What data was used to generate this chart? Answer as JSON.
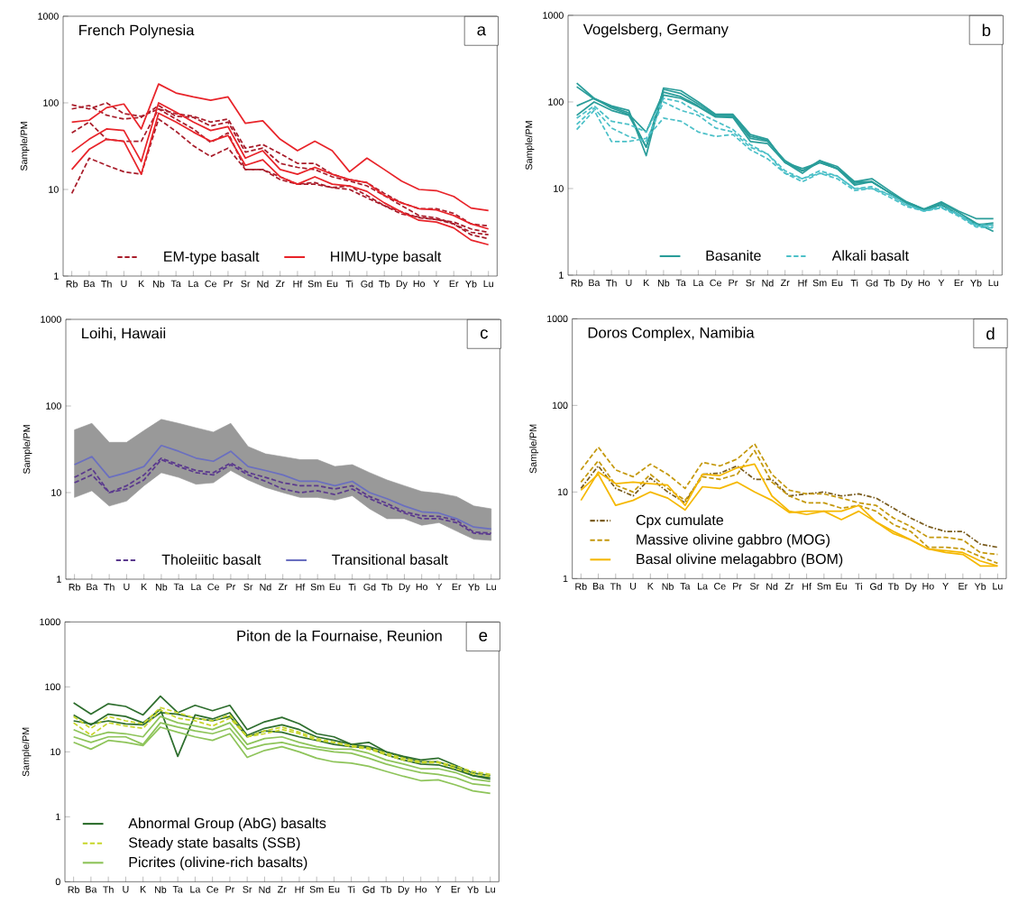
{
  "chart_data": [
    {
      "type": "line",
      "title": "French Polynesia",
      "annotations": [
        "a"
      ],
      "ylabel": "Sample/PM",
      "categories": [
        "Rb",
        "Ba",
        "Th",
        "U",
        "K",
        "Nb",
        "Ta",
        "La",
        "Ce",
        "Pr",
        "Sr",
        "Nd",
        "Zr",
        "Hf",
        "Sm",
        "Eu",
        "Ti",
        "Gd",
        "Tb",
        "Dy",
        "Ho",
        "Y",
        "Er",
        "Yb",
        "Lu"
      ],
      "log": "y",
      "ylim": [
        1,
        1000
      ],
      "yticks": [
        1,
        10,
        100,
        1000
      ],
      "legend": "bottom",
      "series": [
        {
          "name": "EM-type basalt",
          "color": "#a81c2a",
          "line_style": "dashed",
          "values": [
            95,
            85,
            100,
            75,
            70,
            85,
            75,
            70,
            60,
            65,
            30,
            33,
            26,
            20,
            20,
            15,
            13,
            12,
            9,
            7,
            6,
            6,
            5.3,
            4,
            3.8
          ]
        },
        {
          "color": "#a81c2a",
          "line_style": "dashed",
          "values": [
            85,
            93,
            72,
            65,
            68,
            93,
            70,
            68,
            54,
            60,
            27,
            30,
            20,
            18,
            17,
            14,
            12.5,
            11,
            8.5,
            6.5,
            5,
            4.7,
            4,
            3,
            2.7
          ]
        },
        {
          "color": "#a81c2a",
          "line_style": "dashed",
          "values": [
            45,
            60,
            38,
            36,
            36,
            85,
            65,
            50,
            35,
            45,
            17,
            17,
            14,
            11.5,
            12,
            10.5,
            10,
            8,
            6.5,
            5.2,
            4.8,
            4.5,
            4,
            3.2,
            3
          ]
        },
        {
          "color": "#a81c2a",
          "line_style": "dashed",
          "values": [
            9,
            23,
            19,
            16,
            15,
            65,
            47,
            32,
            24,
            30,
            17,
            17,
            13,
            11.5,
            11.5,
            10.5,
            11,
            8.5,
            6.5,
            5.5,
            4.7,
            4.5,
            4.2,
            3.5,
            3.2
          ]
        },
        {
          "name": "HIMU-type basalt",
          "color": "#e8242a",
          "line_style": "solid",
          "values": [
            60,
            63,
            88,
            97,
            50,
            165,
            130,
            117,
            107,
            117,
            58,
            62,
            38,
            28,
            36,
            28,
            16,
            23,
            17,
            12.5,
            10,
            9.7,
            8.3,
            6.1,
            5.7
          ]
        },
        {
          "color": "#e8242a",
          "line_style": "solid",
          "values": [
            27,
            38,
            50,
            48,
            21,
            100,
            78,
            60,
            48,
            53,
            23,
            28,
            17,
            15,
            18,
            15,
            13,
            12,
            8.5,
            7,
            6,
            5.8,
            5,
            4,
            3.5
          ]
        },
        {
          "color": "#e8242a",
          "line_style": "solid",
          "values": [
            17,
            29,
            38,
            36,
            15,
            76,
            60,
            46,
            36,
            42,
            19,
            22,
            14,
            11.5,
            14,
            11.5,
            11,
            9.5,
            7,
            5.5,
            4.4,
            4.2,
            3.6,
            2.6,
            2.3
          ]
        }
      ]
    },
    {
      "type": "line",
      "title": "Vogelsberg, Germany",
      "annotations": [
        "b"
      ],
      "ylabel": "Sample/PM",
      "categories": [
        "Rb",
        "Ba",
        "Th",
        "U",
        "K",
        "Nb",
        "Ta",
        "La",
        "Ce",
        "Pr",
        "Sr",
        "Nd",
        "Zr",
        "Hf",
        "Sm",
        "Eu",
        "Ti",
        "Gd",
        "Tb",
        "Dy",
        "Ho",
        "Y",
        "Er",
        "Yb",
        "Lu"
      ],
      "log": "y",
      "ylim": [
        1,
        1000
      ],
      "yticks": [
        1,
        10,
        100,
        1000
      ],
      "legend": "bottom",
      "series": [
        {
          "name": "Basanite",
          "color": "#2a9d9a",
          "line_style": "solid",
          "values": [
            165,
            110,
            90,
            80,
            24,
            145,
            135,
            100,
            72,
            72,
            42,
            37,
            20,
            15,
            21,
            18,
            12,
            13,
            9.5,
            7,
            5.8,
            7,
            5.5,
            4.5,
            4.5
          ]
        },
        {
          "color": "#2a9d9a",
          "line_style": "solid",
          "values": [
            150,
            108,
            88,
            75,
            30,
            140,
            125,
            95,
            70,
            70,
            40,
            36,
            20,
            16,
            21,
            17,
            12,
            12,
            9,
            7,
            5.8,
            6.8,
            5.3,
            4,
            3.2
          ]
        },
        {
          "color": "#2a9d9a",
          "line_style": "solid",
          "values": [
            90,
            110,
            85,
            72,
            45,
            130,
            115,
            90,
            68,
            68,
            38,
            35,
            21,
            16,
            20,
            17,
            11.5,
            12,
            9,
            6.8,
            5.6,
            6.5,
            5,
            3.8,
            4
          ]
        },
        {
          "color": "#2a9d9a",
          "line_style": "solid",
          "values": [
            70,
            100,
            80,
            70,
            30,
            120,
            110,
            88,
            67,
            66,
            35,
            33,
            20,
            17,
            20,
            17,
            11,
            12,
            9,
            6.8,
            5.7,
            6.5,
            5,
            3.9,
            3.8
          ]
        },
        {
          "name": "Alkali basalt",
          "color": "#4cc0c8",
          "line_style": "dashed",
          "values": [
            65,
            90,
            60,
            55,
            45,
            110,
            100,
            75,
            60,
            48,
            32,
            25,
            16,
            13,
            16,
            14,
            10,
            10.5,
            8.5,
            6.5,
            5.5,
            6,
            5,
            3.8,
            3.8
          ]
        },
        {
          "color": "#4cc0c8",
          "line_style": "dashed",
          "values": [
            55,
            85,
            50,
            40,
            35,
            100,
            80,
            70,
            50,
            45,
            30,
            25,
            15,
            13,
            15,
            14,
            10,
            10,
            8.5,
            6.5,
            5.5,
            6.2,
            5,
            3.7,
            3.6
          ]
        },
        {
          "color": "#4cc0c8",
          "line_style": "dashed",
          "values": [
            48,
            80,
            35,
            35,
            38,
            65,
            60,
            45,
            40,
            42,
            28,
            22,
            15,
            12,
            15,
            13,
            9.5,
            10,
            8,
            6.2,
            5.5,
            6,
            4.8,
            3.6,
            3.5
          ]
        }
      ]
    },
    {
      "type": "line",
      "title": "Loihi, Hawaii",
      "annotations": [
        "c"
      ],
      "ylabel": "Sample/PM",
      "categories": [
        "Rb",
        "Ba",
        "Th",
        "U",
        "K",
        "Nb",
        "Ta",
        "La",
        "Ce",
        "Pr",
        "Sr",
        "Nd",
        "Zr",
        "Hf",
        "Sm",
        "Eu",
        "Ti",
        "Gd",
        "Tb",
        "Dy",
        "Ho",
        "Y",
        "Er",
        "Yb",
        "Lu"
      ],
      "log": "y",
      "ylim": [
        1,
        1000
      ],
      "yticks": [
        1,
        10,
        100,
        1000
      ],
      "legend": "bottom",
      "series": [
        {
          "name": "Tholeiitic basalt",
          "color": "#5b3a8e",
          "line_style": "dashed",
          "values": [
            15,
            19,
            10,
            12,
            16,
            25,
            21,
            18,
            17,
            22,
            17,
            15,
            13,
            12,
            12,
            11,
            12,
            9,
            7.5,
            6,
            5.4,
            5.3,
            4.8,
            3.5,
            3.4
          ]
        },
        {
          "color": "#5b3a8e",
          "line_style": "dashed",
          "values": [
            13,
            16,
            10,
            11,
            14,
            24,
            20,
            17,
            16,
            21,
            16,
            13.5,
            11,
            10,
            10.5,
            9.5,
            11,
            8.5,
            7,
            5.8,
            5,
            5,
            4.5,
            3.4,
            3.3
          ]
        },
        {
          "name": "Transitional basalt",
          "color": "#6a6fc0",
          "line_style": "solid",
          "values": [
            21,
            26,
            15,
            17,
            20,
            35,
            30,
            25,
            23,
            30,
            20,
            18,
            16,
            13.5,
            13.5,
            12,
            13.5,
            10,
            8.5,
            7,
            6,
            5.8,
            5,
            4,
            3.8
          ],
          "upper": [
            53,
            63,
            38,
            38,
            52,
            70,
            63,
            56,
            50,
            63,
            34,
            28,
            26,
            24,
            24,
            20,
            21,
            17,
            14,
            12,
            10.3,
            9.8,
            9,
            7,
            6.5
          ],
          "lower": [
            8.8,
            10.5,
            7,
            8,
            12,
            17,
            15,
            12.5,
            13,
            18,
            14,
            11.5,
            10,
            8.8,
            8.8,
            8.2,
            9.2,
            6.5,
            5,
            5,
            4.2,
            4.5,
            3.6,
            2.9,
            2.8
          ]
        }
      ]
    },
    {
      "type": "line",
      "title": "Doros Complex, Namibia",
      "annotations": [
        "d"
      ],
      "ylabel": "Sample/PM",
      "categories": [
        "Rb",
        "Ba",
        "Th",
        "U",
        "K",
        "Nb",
        "Ta",
        "La",
        "Ce",
        "Pr",
        "Sr",
        "Nd",
        "Zr",
        "Hf",
        "Sm",
        "Eu",
        "Ti",
        "Gd",
        "Tb",
        "Dy",
        "Ho",
        "Y",
        "Er",
        "Yb",
        "Lu"
      ],
      "log": "y",
      "ylim": [
        1,
        1000
      ],
      "yticks": [
        1,
        10,
        100,
        1000
      ],
      "legend": "bottom left",
      "series": [
        {
          "name": "Cpx cumulate",
          "color": "#7a5c1e",
          "line_style": "dashdot",
          "values": [
            11,
            20,
            11,
            9,
            14.5,
            10,
            7.5,
            16,
            16.5,
            20,
            14,
            14,
            9,
            9.5,
            10,
            9,
            9.5,
            8.5,
            6.5,
            5,
            4,
            3.5,
            3.5,
            2.5,
            2.3
          ]
        },
        {
          "name": "Massive olivine gabbro (MOG)",
          "color": "#c4980c",
          "line_style": "dashed",
          "values": [
            18,
            33,
            18,
            15,
            21,
            16,
            11,
            22,
            20,
            24,
            36,
            16,
            10.5,
            9.5,
            9.5,
            8.5,
            7.5,
            7,
            5,
            4,
            3,
            3,
            2.8,
            2,
            1.9
          ]
        },
        {
          "color": "#c4980c",
          "line_style": "dashed",
          "values": [
            13,
            23,
            12,
            10,
            16,
            11,
            8,
            15,
            14,
            16,
            30,
            13,
            9,
            7.5,
            7.5,
            6.5,
            7,
            6,
            4.2,
            3.5,
            2.3,
            2.3,
            2.2,
            1.8,
            1.5
          ]
        },
        {
          "name": "Basal olivine melagabbro (BOM)",
          "color": "#f5b800",
          "line_style": "solid",
          "values": [
            8,
            17,
            12.5,
            13,
            12.5,
            12,
            7,
            16,
            15.5,
            19,
            21,
            9,
            6,
            5.5,
            6,
            6,
            7,
            4.5,
            3.5,
            2.8,
            2.2,
            2.1,
            2,
            1.6,
            1.4
          ]
        },
        {
          "color": "#f5b800",
          "line_style": "solid",
          "values": [
            10.5,
            16,
            7,
            8,
            10,
            8.5,
            6.2,
            11.5,
            11,
            13,
            10,
            8,
            5.8,
            6,
            6,
            4.8,
            6,
            4.5,
            3.3,
            2.8,
            2.2,
            2,
            1.9,
            1.4,
            1.4
          ]
        }
      ]
    },
    {
      "type": "line",
      "title": "Piton de la Fournaise, Reunion",
      "annotations": [
        "e"
      ],
      "ylabel": "Sample/PM",
      "categories": [
        "Rb",
        "Ba",
        "Th",
        "U",
        "K",
        "Nb",
        "Ta",
        "La",
        "Ce",
        "Pr",
        "Sr",
        "Nd",
        "Zr",
        "Hf",
        "Sm",
        "Eu",
        "Ti",
        "Gd",
        "Tb",
        "Dy",
        "Ho",
        "Y",
        "Er",
        "Yb",
        "Lu"
      ],
      "log": "y",
      "ylim": [
        0.1,
        1000
      ],
      "yticks": [
        {
          "value": 0.1,
          "label": "0"
        },
        1,
        10,
        100,
        1000
      ],
      "legend": "bottom left",
      "series": [
        {
          "name": "Abnormal Group (AbG) basalts",
          "color": "#2e6e2e",
          "line_style": "solid",
          "values": [
            57,
            38,
            55,
            50,
            37,
            72,
            40,
            52,
            43,
            52,
            22,
            29,
            34,
            27,
            19,
            17,
            13,
            14,
            10,
            8.5,
            7.5,
            8,
            6.2,
            4.7,
            4.3
          ]
        },
        {
          "color": "#2e6e2e",
          "line_style": "solid",
          "values": [
            37,
            26,
            38,
            35,
            28,
            45,
            8.5,
            37,
            32,
            40,
            18,
            23,
            26,
            22,
            17,
            15,
            13,
            12,
            10,
            8.2,
            7,
            7,
            5.8,
            4.3,
            4
          ]
        },
        {
          "color": "#2e6e2e",
          "line_style": "solid",
          "values": [
            30,
            27,
            30,
            27,
            26,
            40,
            38,
            33,
            30,
            35,
            17,
            21,
            20,
            17,
            15,
            13,
            12,
            11.5,
            9,
            7.5,
            6.5,
            6.3,
            5.3,
            4.3,
            3.8
          ]
        },
        {
          "name": "Steady state basalts (SSB)",
          "color": "#c8d62a",
          "line_style": "dashed",
          "values": [
            35,
            23,
            35,
            30,
            27,
            48,
            40,
            33,
            30,
            37,
            17,
            21,
            24,
            20,
            16,
            14,
            12.5,
            11.5,
            9.5,
            8,
            7,
            7,
            6,
            5,
            4.5
          ]
        },
        {
          "color": "#c8d62a",
          "line_style": "dashed",
          "values": [
            28,
            18,
            28,
            25,
            23,
            44,
            33,
            30,
            25,
            33,
            17,
            19,
            22,
            19,
            15,
            14,
            12,
            11,
            9,
            7.5,
            6.8,
            6.8,
            5.5,
            4.6,
            4.2
          ]
        },
        {
          "name": "Picrites (olivine-rich basalts)",
          "color": "#8ec45a",
          "line_style": "solid",
          "values": [
            22,
            17,
            20,
            19,
            17,
            35,
            28,
            25,
            22,
            28,
            13,
            16,
            17,
            14,
            12,
            11,
            11,
            9.5,
            7.5,
            6.5,
            5.5,
            5.5,
            4.8,
            3.8,
            3.5
          ]
        },
        {
          "color": "#8ec45a",
          "line_style": "solid",
          "values": [
            17,
            14,
            17,
            17,
            13,
            28,
            24,
            21,
            19,
            23,
            11,
            13,
            14,
            12,
            11,
            10,
            9.5,
            8,
            6.5,
            5.5,
            4.8,
            4.5,
            4,
            3.2,
            3
          ]
        },
        {
          "color": "#8ec45a",
          "line_style": "solid",
          "values": [
            14,
            11,
            15,
            14,
            12.5,
            24,
            20,
            17,
            15,
            19,
            8.2,
            10.5,
            12,
            10,
            8,
            7,
            6.7,
            6,
            5,
            4.2,
            3.6,
            3.7,
            3.1,
            2.5,
            2.3
          ]
        }
      ]
    }
  ]
}
